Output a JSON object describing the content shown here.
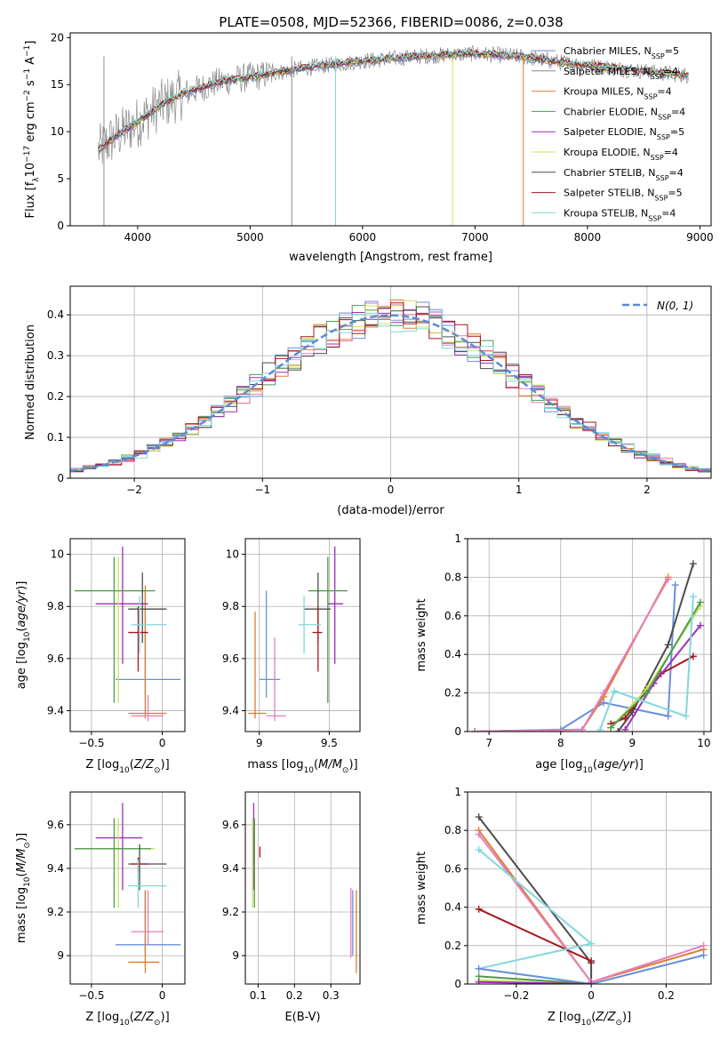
{
  "figure_title": "PLATE=0508, MJD=52366, FIBERID=0086, z=0.038",
  "colors": {
    "Chabrier MILES": "#6a8fd9",
    "Salpeter MILES": "#8c8c8c",
    "Kroupa MILES": "#e07b30",
    "Chabrier ELODIE": "#4f9b4f",
    "Salpeter ELODIE": "#9c2fb8",
    "Kroupa ELODIE": "#cfe05a",
    "Chabrier STELIB": "#4d4d4d",
    "Salpeter STELIB": "#a8161b",
    "Kroupa STELIB": "#82d8dc",
    "pink": "#e37fbf",
    "gaussian": "#5b8bd6",
    "grid": "#b0b0b0"
  },
  "chart_data": [
    {
      "type": "line",
      "id": "spectrum",
      "title": "",
      "xlabel": "wavelength [Angstrom, rest frame]",
      "ylabel": "Flux [f_λ10^-17 erg cm^-2 s^-1 A^-1]",
      "xlim": [
        3400,
        9100
      ],
      "ylim": [
        0,
        20.5
      ],
      "xticks": [
        4000,
        5000,
        6000,
        7000,
        8000,
        9000
      ],
      "yticks": [
        0,
        5,
        10,
        15,
        20
      ],
      "grid": false,
      "legend_position": "top-right",
      "continuum_x": [
        3650,
        3800,
        4000,
        4200,
        4400,
        4700,
        5000,
        5500,
        6000,
        6500,
        7000,
        7400,
        7800,
        8200,
        8600,
        8900
      ],
      "continuum_y": [
        8.0,
        9.5,
        11.0,
        12.8,
        14.0,
        15.2,
        15.8,
        16.8,
        17.5,
        18.0,
        18.3,
        18.0,
        17.3,
        16.8,
        16.3,
        16.0
      ],
      "legend": [
        {
          "label": "Chabrier MILES, N",
          "sub": "SSP",
          "tail": "=5"
        },
        {
          "label": "Salpeter MILES, N",
          "sub": "SSP",
          "tail": "=4"
        },
        {
          "label": "Kroupa MILES, N",
          "sub": "SSP",
          "tail": "=4"
        },
        {
          "label": "Chabrier ELODIE, N",
          "sub": "SSP",
          "tail": "=4"
        },
        {
          "label": "Salpeter ELODIE, N",
          "sub": "SSP",
          "tail": "=5"
        },
        {
          "label": "Kroupa ELODIE, N",
          "sub": "SSP",
          "tail": "=4"
        },
        {
          "label": "Chabrier STELIB, N",
          "sub": "SSP",
          "tail": "=4"
        },
        {
          "label": "Salpeter STELIB, N",
          "sub": "SSP",
          "tail": "=5"
        },
        {
          "label": "Kroupa STELIB, N",
          "sub": "SSP",
          "tail": "=4"
        }
      ]
    },
    {
      "type": "line",
      "id": "residuals",
      "xlabel": "(data-model)/error",
      "ylabel": "Normed distribution",
      "xlim": [
        -2.5,
        2.5
      ],
      "ylim": [
        0,
        0.47
      ],
      "xticks": [
        -2,
        -1,
        0,
        1,
        2
      ],
      "yticks": [
        0.0,
        0.1,
        0.2,
        0.3,
        0.4
      ],
      "grid": true,
      "legend_position": "top-right",
      "legend_label": "N(0, 1)",
      "gaussian_sigma": 1.0
    },
    {
      "type": "scatter",
      "id": "age_vs_z",
      "xlabel": "Z [log10(Z/Z⊙)]",
      "ylabel": "age [log10(age/yr)]",
      "xlim": [
        -0.65,
        0.16
      ],
      "ylim": [
        9.32,
        10.06
      ],
      "xticks": [
        -0.5,
        0.0
      ],
      "yticks": [
        9.4,
        9.6,
        9.8,
        10.0
      ],
      "grid": true,
      "points": [
        {
          "c": "Chabrier MILES",
          "x": -0.12,
          "xe": [
            -0.33,
            0.13
          ],
          "y": 9.52,
          "ye": [
            9.45,
            9.86
          ]
        },
        {
          "c": "Kroupa MILES",
          "x": -0.12,
          "xe": [
            -0.24,
            0.03
          ],
          "y": 9.39,
          "ye": [
            9.37,
            9.88
          ]
        },
        {
          "c": "pink",
          "x": -0.1,
          "xe": [
            -0.22,
            0.01
          ],
          "y": 9.38,
          "ye": [
            9.36,
            9.46
          ]
        },
        {
          "c": "Salpeter ELODIE",
          "x": -0.28,
          "xe": [
            -0.47,
            -0.1
          ],
          "y": 9.81,
          "ye": [
            9.58,
            10.03
          ]
        },
        {
          "c": "Kroupa ELODIE",
          "x": -0.31,
          "xe": [
            -0.6,
            -0.08
          ],
          "y": 9.86,
          "ye": [
            9.43,
            9.99
          ]
        },
        {
          "c": "Chabrier ELODIE",
          "x": -0.34,
          "xe": [
            -0.62,
            -0.05
          ],
          "y": 9.86,
          "ye": [
            9.43,
            9.99
          ]
        },
        {
          "c": "Chabrier STELIB",
          "x": -0.14,
          "xe": [
            -0.24,
            0.03
          ],
          "y": 9.79,
          "ye": [
            9.66,
            9.93
          ]
        },
        {
          "c": "Salpeter STELIB",
          "x": -0.17,
          "xe": [
            -0.24,
            -0.1
          ],
          "y": 9.7,
          "ye": [
            9.55,
            9.8
          ]
        },
        {
          "c": "Kroupa STELIB",
          "x": -0.16,
          "xe": [
            -0.22,
            0.03
          ],
          "y": 9.73,
          "ye": [
            9.62,
            9.84
          ]
        }
      ]
    },
    {
      "type": "scatter",
      "id": "age_vs_mass",
      "xlabel": "mass [log10(M/M⊙)]",
      "ylabel": "",
      "xlim": [
        8.9,
        9.72
      ],
      "ylim": [
        9.32,
        10.06
      ],
      "xticks": [
        9.0,
        9.5
      ],
      "yticks": [
        9.4,
        9.6,
        9.8,
        10.0
      ],
      "grid": true,
      "points": [
        {
          "c": "Chabrier MILES",
          "x": 9.05,
          "xe": [
            9.0,
            9.15
          ],
          "y": 9.52,
          "ye": [
            9.45,
            9.86
          ]
        },
        {
          "c": "Kroupa MILES",
          "x": 8.97,
          "xe": [
            8.92,
            9.05
          ],
          "y": 9.39,
          "ye": [
            9.37,
            9.78
          ]
        },
        {
          "c": "pink",
          "x": 9.11,
          "xe": [
            9.05,
            9.19
          ],
          "y": 9.38,
          "ye": [
            9.36,
            9.68
          ]
        },
        {
          "c": "Salpeter ELODIE",
          "x": 9.54,
          "xe": [
            9.49,
            9.6
          ],
          "y": 9.81,
          "ye": [
            9.58,
            10.03
          ]
        },
        {
          "c": "Kroupa ELODIE",
          "x": 9.49,
          "xe": [
            9.35,
            9.63
          ],
          "y": 9.86,
          "ye": [
            9.43,
            9.99
          ]
        },
        {
          "c": "Chabrier ELODIE",
          "x": 9.49,
          "xe": [
            9.35,
            9.63
          ],
          "y": 9.86,
          "ye": [
            9.43,
            9.99
          ]
        },
        {
          "c": "Chabrier STELIB",
          "x": 9.42,
          "xe": [
            9.32,
            9.51
          ],
          "y": 9.79,
          "ye": [
            9.66,
            9.93
          ]
        },
        {
          "c": "Salpeter STELIB",
          "x": 9.42,
          "xe": [
            9.38,
            9.45
          ],
          "y": 9.7,
          "ye": [
            9.55,
            9.8
          ]
        },
        {
          "c": "Kroupa STELIB",
          "x": 9.32,
          "xe": [
            9.28,
            9.44
          ],
          "y": 9.73,
          "ye": [
            9.62,
            9.84
          ]
        }
      ]
    },
    {
      "type": "line",
      "id": "massweight_vs_age",
      "xlabel": "age [log10(age/yr)]",
      "ylabel": "mass weight",
      "xlim": [
        6.7,
        10.1
      ],
      "ylim": [
        0,
        1.0
      ],
      "xticks": [
        7,
        8,
        9,
        10
      ],
      "yticks": [
        0.0,
        0.2,
        0.4,
        0.6,
        0.8,
        1.0
      ],
      "grid": true,
      "series": [
        {
          "c": "Chabrier MILES",
          "x": [
            6.8,
            8.0,
            8.6,
            9.5,
            9.6
          ],
          "y": [
            0.0,
            0.01,
            0.15,
            0.08,
            0.76
          ]
        },
        {
          "c": "Kroupa MILES",
          "x": [
            6.8,
            8.3,
            8.6,
            9.5
          ],
          "y": [
            0.0,
            0.01,
            0.18,
            0.8
          ]
        },
        {
          "c": "pink",
          "x": [
            6.8,
            8.3,
            8.6,
            9.5
          ],
          "y": [
            0.0,
            0.01,
            0.2,
            0.79
          ]
        },
        {
          "c": "Chabrier STELIB",
          "x": [
            8.8,
            9.0,
            9.5,
            9.85
          ],
          "y": [
            0.0,
            0.1,
            0.45,
            0.87
          ]
        },
        {
          "c": "Salpeter STELIB",
          "x": [
            8.7,
            8.9,
            9.0,
            9.4,
            9.85
          ],
          "y": [
            0.04,
            0.07,
            0.12,
            0.3,
            0.39
          ]
        },
        {
          "c": "Salpeter ELODIE",
          "x": [
            8.9,
            9.3,
            9.95
          ],
          "y": [
            0.01,
            0.25,
            0.55
          ]
        },
        {
          "c": "Kroupa ELODIE",
          "x": [
            8.7,
            9.2,
            9.95
          ],
          "y": [
            0.02,
            0.22,
            0.65
          ]
        },
        {
          "c": "Chabrier ELODIE",
          "x": [
            8.7,
            9.2,
            9.95
          ],
          "y": [
            0.02,
            0.2,
            0.67
          ]
        },
        {
          "c": "Kroupa STELIB",
          "x": [
            8.55,
            8.75,
            9.75,
            9.85
          ],
          "y": [
            0.01,
            0.21,
            0.08,
            0.7
          ]
        }
      ]
    },
    {
      "type": "scatter",
      "id": "mass_vs_z",
      "xlabel": "Z [log10(Z/Z⊙)]",
      "ylabel": "mass [log10(M/M⊙)]",
      "xlim": [
        -0.65,
        0.16
      ],
      "ylim": [
        8.87,
        9.75
      ],
      "xticks": [
        -0.5,
        0.0
      ],
      "yticks": [
        9.0,
        9.2,
        9.4,
        9.6
      ],
      "grid": true,
      "points": [
        {
          "c": "Chabrier MILES",
          "x": -0.12,
          "xe": [
            -0.33,
            0.13
          ],
          "y": 9.05,
          "ye": [
            9.0,
            9.3
          ]
        },
        {
          "c": "Kroupa MILES",
          "x": -0.12,
          "xe": [
            -0.24,
            -0.02
          ],
          "y": 8.97,
          "ye": [
            8.92,
            9.3
          ]
        },
        {
          "c": "pink",
          "x": -0.1,
          "xe": [
            -0.22,
            0.01
          ],
          "y": 9.11,
          "ye": [
            9.05,
            9.3
          ]
        },
        {
          "c": "Salpeter ELODIE",
          "x": -0.28,
          "xe": [
            -0.47,
            -0.14
          ],
          "y": 9.54,
          "ye": [
            9.3,
            9.7
          ]
        },
        {
          "c": "Kroupa ELODIE",
          "x": -0.31,
          "xe": [
            -0.6,
            -0.05
          ],
          "y": 9.49,
          "ye": [
            9.22,
            9.63
          ]
        },
        {
          "c": "Chabrier ELODIE",
          "x": -0.34,
          "xe": [
            -0.62,
            -0.08
          ],
          "y": 9.49,
          "ye": [
            9.22,
            9.63
          ]
        },
        {
          "c": "Chabrier STELIB",
          "x": -0.16,
          "xe": [
            -0.24,
            0.03
          ],
          "y": 9.42,
          "ye": [
            9.3,
            9.51
          ]
        },
        {
          "c": "Salpeter STELIB",
          "x": -0.17,
          "xe": [
            -0.22,
            -0.1
          ],
          "y": 9.42,
          "ye": [
            9.38,
            9.45
          ]
        },
        {
          "c": "Kroupa STELIB",
          "x": -0.17,
          "xe": [
            -0.24,
            0.03
          ],
          "y": 9.32,
          "ye": [
            9.22,
            9.44
          ]
        }
      ]
    },
    {
      "type": "scatter",
      "id": "mass_vs_ebv",
      "xlabel": "E(B-V)",
      "ylabel": "",
      "xlim": [
        0.065,
        0.38
      ],
      "ylim": [
        8.87,
        9.75
      ],
      "xticks": [
        0.1,
        0.2,
        0.3
      ],
      "yticks": [
        9.0,
        9.2,
        9.4,
        9.6
      ],
      "grid": true,
      "points": [
        {
          "c": "Salpeter ELODIE",
          "x": 0.088,
          "y": 9.54,
          "ye": [
            9.3,
            9.7
          ]
        },
        {
          "c": "Kroupa ELODIE",
          "x": 0.085,
          "y": 9.49,
          "ye": [
            9.22,
            9.63
          ]
        },
        {
          "c": "Chabrier ELODIE",
          "x": 0.09,
          "y": 9.49,
          "ye": [
            9.22,
            9.63
          ]
        },
        {
          "c": "Salpeter STELIB",
          "x": 0.105,
          "y": 9.47,
          "ye": [
            9.45,
            9.5
          ]
        },
        {
          "c": "Kroupa MILES",
          "x": 0.37,
          "y": 8.97,
          "ye": [
            8.92,
            9.3
          ]
        },
        {
          "c": "pink",
          "x": 0.355,
          "y": 9.11,
          "ye": [
            8.99,
            9.31
          ]
        },
        {
          "c": "Chabrier MILES",
          "x": 0.36,
          "y": 9.05,
          "ye": [
            9.0,
            9.3
          ]
        }
      ]
    },
    {
      "type": "line",
      "id": "massweight_vs_z",
      "xlabel": "Z [log10(Z/Z⊙)]",
      "ylabel": "mass weight",
      "xlim": [
        -0.33,
        0.32
      ],
      "ylim": [
        0,
        1.0
      ],
      "xticks": [
        -0.2,
        0.0,
        0.2
      ],
      "yticks": [
        0.0,
        0.2,
        0.4,
        0.6,
        0.8,
        1.0
      ],
      "grid": true,
      "series": [
        {
          "c": "Chabrier STELIB",
          "x": [
            -0.3,
            0.0,
            0.0
          ],
          "y": [
            0.87,
            0.11,
            0.0
          ]
        },
        {
          "c": "Kroupa MILES",
          "x": [
            -0.3,
            0.0,
            0.3
          ],
          "y": [
            0.8,
            0.01,
            0.18
          ]
        },
        {
          "c": "pink",
          "x": [
            -0.3,
            0.0,
            0.3
          ],
          "y": [
            0.78,
            0.01,
            0.2
          ]
        },
        {
          "c": "Salpeter STELIB",
          "x": [
            -0.3,
            0.0
          ],
          "y": [
            0.39,
            0.12
          ]
        },
        {
          "c": "Kroupa STELIB",
          "x": [
            -0.3,
            0.0,
            -0.3,
            0.0
          ],
          "y": [
            0.7,
            0.21,
            0.08,
            0.0
          ]
        },
        {
          "c": "Chabrier MILES",
          "x": [
            -0.3,
            0.0,
            0.3
          ],
          "y": [
            0.08,
            0.0,
            0.15
          ]
        },
        {
          "c": "Kroupa ELODIE",
          "x": [
            -0.3,
            0.0
          ],
          "y": [
            0.02,
            0.0
          ]
        },
        {
          "c": "Chabrier ELODIE",
          "x": [
            -0.3,
            0.0
          ],
          "y": [
            0.04,
            0.0
          ]
        },
        {
          "c": "Salpeter ELODIE",
          "x": [
            -0.3,
            0.0
          ],
          "y": [
            0.01,
            0.0
          ]
        }
      ]
    }
  ]
}
